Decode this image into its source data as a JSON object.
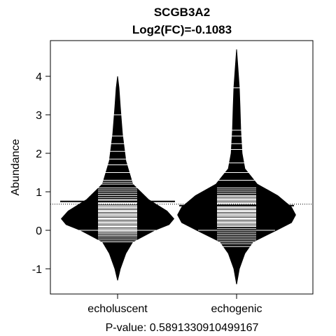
{
  "chart_data": {
    "type": "beanplot",
    "title": "SCGB3A2",
    "subtitle": "Log2(FC)=-0.1083",
    "ylabel": "Abundance",
    "xlabel": "",
    "footer": "P-value: 0.5891330910499167",
    "ylim": [
      -1.65,
      4.8
    ],
    "yticks": [
      -1,
      0,
      1,
      2,
      3,
      4
    ],
    "grid": false,
    "overall_mean": 0.68,
    "categories": [
      "echoluscent",
      "echogenic"
    ],
    "series": [
      {
        "category": "echoluscent",
        "mean": 0.75,
        "min": -1.3,
        "max": 4.0,
        "density": [
          [
            -1.3,
            0.0
          ],
          [
            -1.0,
            0.04
          ],
          [
            -0.6,
            0.12
          ],
          [
            -0.3,
            0.22
          ],
          [
            0.0,
            0.54
          ],
          [
            0.15,
            0.75
          ],
          [
            0.3,
            0.82
          ],
          [
            0.5,
            0.72
          ],
          [
            0.8,
            0.45
          ],
          [
            1.2,
            0.22
          ],
          [
            1.8,
            0.12
          ],
          [
            2.5,
            0.07
          ],
          [
            3.2,
            0.04
          ],
          [
            3.7,
            0.02
          ],
          [
            4.0,
            0.0
          ]
        ],
        "observations": [
          -0.3,
          -0.25,
          -0.2,
          -0.15,
          -0.12,
          -0.08,
          -0.05,
          -0.02,
          0.0,
          0.0,
          0.02,
          0.05,
          0.08,
          0.1,
          0.12,
          0.15,
          0.18,
          0.2,
          0.22,
          0.25,
          0.28,
          0.3,
          0.32,
          0.35,
          0.38,
          0.4,
          0.42,
          0.45,
          0.48,
          0.5,
          0.52,
          0.55,
          0.58,
          0.6,
          0.62,
          0.65,
          0.68,
          0.7,
          0.72,
          0.75,
          0.78,
          0.8,
          0.85,
          0.9,
          0.95,
          1.0,
          1.05,
          1.1,
          1.2,
          1.25,
          1.3,
          1.5,
          1.7,
          1.85,
          2.05,
          2.25,
          2.45,
          3.0
        ]
      },
      {
        "category": "echogenic",
        "mean": 0.64,
        "min": -1.4,
        "max": 4.7,
        "density": [
          [
            -1.4,
            0.0
          ],
          [
            -1.0,
            0.04
          ],
          [
            -0.6,
            0.12
          ],
          [
            -0.3,
            0.24
          ],
          [
            0.0,
            0.58
          ],
          [
            0.2,
            0.8
          ],
          [
            0.4,
            0.86
          ],
          [
            0.6,
            0.8
          ],
          [
            0.9,
            0.6
          ],
          [
            1.2,
            0.3
          ],
          [
            1.6,
            0.12
          ],
          [
            2.0,
            0.08
          ],
          [
            2.6,
            0.06
          ],
          [
            3.2,
            0.05
          ],
          [
            3.7,
            0.04
          ],
          [
            4.2,
            0.02
          ],
          [
            4.7,
            0.0
          ]
        ],
        "observations": [
          -0.42,
          -0.35,
          -0.3,
          -0.25,
          -0.2,
          -0.15,
          -0.1,
          -0.05,
          0.0,
          0.0,
          0.05,
          0.1,
          0.12,
          0.15,
          0.18,
          0.2,
          0.22,
          0.25,
          0.28,
          0.3,
          0.32,
          0.35,
          0.38,
          0.4,
          0.42,
          0.45,
          0.48,
          0.5,
          0.52,
          0.55,
          0.58,
          0.6,
          0.62,
          0.65,
          0.68,
          0.7,
          0.72,
          0.75,
          0.78,
          0.8,
          0.82,
          0.85,
          0.88,
          0.9,
          0.95,
          1.0,
          1.05,
          1.1,
          1.3,
          1.5,
          1.75,
          2.1,
          2.25,
          2.45,
          2.6,
          3.7
        ]
      }
    ]
  }
}
